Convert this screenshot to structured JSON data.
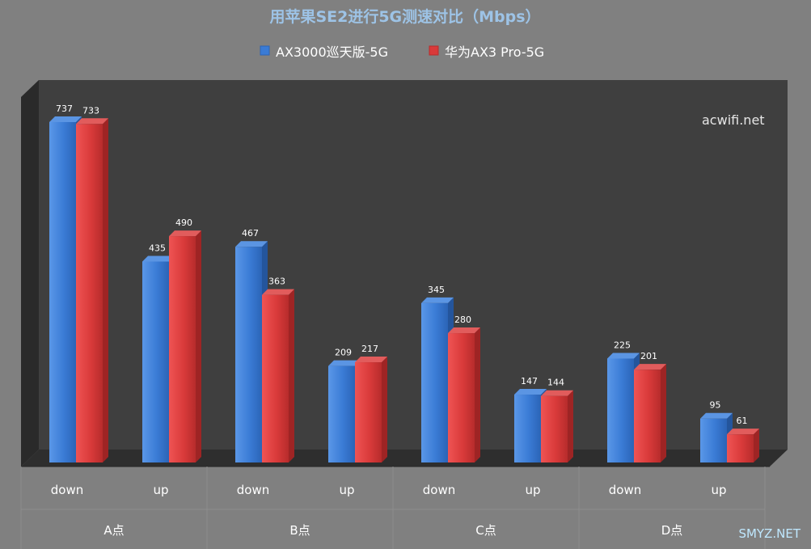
{
  "chart_data": {
    "type": "bar",
    "title": "用苹果SE2进行5G测速对比（Mbps）",
    "watermark": "acwifi.net",
    "corner_watermark": "SMYZ.NET",
    "categories": [
      "down",
      "up",
      "down",
      "up",
      "down",
      "up",
      "down",
      "up"
    ],
    "groups": [
      "A点",
      "B点",
      "C点",
      "D点"
    ],
    "series": [
      {
        "name": "AX3000巡天版-5G",
        "color": "#3a7bd5",
        "values": [
          737,
          435,
          467,
          209,
          345,
          147,
          225,
          95
        ]
      },
      {
        "name": "华为AX3 Pro-5G",
        "color": "#d93a3a",
        "values": [
          733,
          490,
          363,
          217,
          280,
          144,
          201,
          61
        ]
      }
    ],
    "ylim": [
      0,
      800
    ],
    "legend_position": "top-center",
    "grid": false
  }
}
